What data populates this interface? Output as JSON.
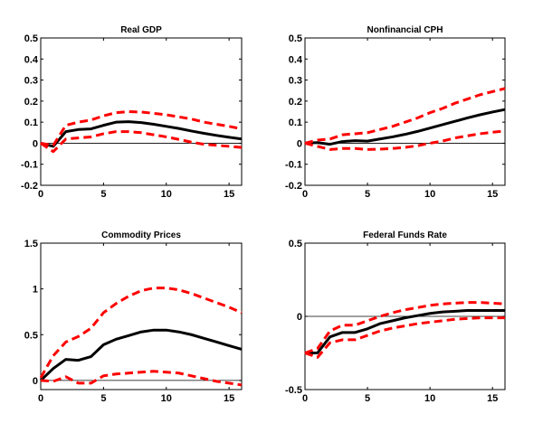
{
  "chart_data": [
    {
      "type": "line",
      "title": "Real GDP",
      "x": [
        0,
        1,
        2,
        3,
        4,
        5,
        6,
        7,
        8,
        9,
        10,
        11,
        12,
        13,
        14,
        15,
        16
      ],
      "xlim": [
        0,
        16
      ],
      "xticks": [
        0,
        5,
        10,
        15
      ],
      "ylim": [
        -0.2,
        0.5
      ],
      "yticks": [
        -0.2,
        -0.1,
        0,
        0.1,
        0.2,
        0.3,
        0.4,
        0.5
      ],
      "ytick_labels": [
        "-0.2",
        "-0.1",
        "0",
        "0.1",
        "0.2",
        "0.3",
        "0.4",
        "0.5"
      ],
      "zero_line": true,
      "grid": false,
      "series": [
        {
          "role": "estimate",
          "color": "#000000",
          "style": "solid",
          "values": [
            0,
            -0.015,
            0.055,
            0.065,
            0.068,
            0.085,
            0.1,
            0.102,
            0.098,
            0.09,
            0.08,
            0.07,
            0.058,
            0.047,
            0.037,
            0.028,
            0.02
          ]
        },
        {
          "role": "upper band",
          "color": "#ff0000",
          "style": "dashed",
          "values": [
            0,
            -0.01,
            0.085,
            0.1,
            0.11,
            0.13,
            0.145,
            0.15,
            0.148,
            0.142,
            0.135,
            0.125,
            0.115,
            0.1,
            0.09,
            0.08,
            0.068
          ]
        },
        {
          "role": "lower band",
          "color": "#ff0000",
          "style": "dashed",
          "values": [
            0,
            -0.04,
            0.02,
            0.025,
            0.03,
            0.045,
            0.055,
            0.055,
            0.05,
            0.04,
            0.03,
            0.018,
            0.005,
            -0.005,
            -0.01,
            -0.015,
            -0.02
          ]
        }
      ]
    },
    {
      "type": "line",
      "title": "Nonfinancial CPH",
      "x": [
        0,
        1,
        2,
        3,
        4,
        5,
        6,
        7,
        8,
        9,
        10,
        11,
        12,
        13,
        14,
        15,
        16
      ],
      "xlim": [
        0,
        16
      ],
      "xticks": [
        0,
        5,
        10,
        15
      ],
      "ylim": [
        -0.2,
        0.5
      ],
      "yticks": [
        -0.2,
        -0.1,
        0,
        0.1,
        0.2,
        0.3,
        0.4,
        0.5
      ],
      "ytick_labels": [
        "-0.2",
        "-0.1",
        "0",
        "0.1",
        "0.2",
        "0.3",
        "0.4",
        "0.5"
      ],
      "zero_line": true,
      "grid": false,
      "series": [
        {
          "role": "estimate",
          "color": "#000000",
          "style": "solid",
          "values": [
            0,
            0.003,
            -0.005,
            0.008,
            0.012,
            0.01,
            0.02,
            0.03,
            0.042,
            0.056,
            0.072,
            0.088,
            0.104,
            0.12,
            0.135,
            0.148,
            0.16
          ]
        },
        {
          "role": "upper band",
          "color": "#ff0000",
          "style": "dashed",
          "values": [
            0,
            0.015,
            0.02,
            0.04,
            0.045,
            0.05,
            0.065,
            0.08,
            0.1,
            0.12,
            0.145,
            0.165,
            0.19,
            0.21,
            0.23,
            0.245,
            0.26
          ]
        },
        {
          "role": "lower band",
          "color": "#ff0000",
          "style": "dashed",
          "values": [
            0,
            -0.015,
            -0.03,
            -0.025,
            -0.025,
            -0.03,
            -0.028,
            -0.025,
            -0.02,
            -0.012,
            0,
            0.01,
            0.025,
            0.035,
            0.045,
            0.052,
            0.058
          ]
        }
      ]
    },
    {
      "type": "line",
      "title": "Commodity Prices",
      "x": [
        0,
        1,
        2,
        3,
        4,
        5,
        6,
        7,
        8,
        9,
        10,
        11,
        12,
        13,
        14,
        15,
        16
      ],
      "xlim": [
        0,
        16
      ],
      "xticks": [
        0,
        5,
        10,
        15
      ],
      "ylim": [
        -0.1,
        1.5
      ],
      "yticks": [
        0,
        0.5,
        1,
        1.5
      ],
      "ytick_labels": [
        "0",
        "0.5",
        "1",
        "1.5"
      ],
      "zero_line": true,
      "grid": false,
      "series": [
        {
          "role": "estimate",
          "color": "#000000",
          "style": "solid",
          "values": [
            0,
            0.13,
            0.23,
            0.22,
            0.26,
            0.39,
            0.45,
            0.49,
            0.53,
            0.55,
            0.55,
            0.53,
            0.5,
            0.46,
            0.42,
            0.38,
            0.34
          ]
        },
        {
          "role": "upper band",
          "color": "#ff0000",
          "style": "dashed",
          "values": [
            0.03,
            0.27,
            0.42,
            0.48,
            0.57,
            0.74,
            0.84,
            0.92,
            0.98,
            1.01,
            1.01,
            0.99,
            0.95,
            0.9,
            0.85,
            0.8,
            0.74
          ]
        },
        {
          "role": "lower band",
          "color": "#ff0000",
          "style": "dashed",
          "values": [
            0,
            -0.01,
            0.04,
            -0.03,
            -0.03,
            0.05,
            0.07,
            0.08,
            0.09,
            0.1,
            0.09,
            0.08,
            0.05,
            0.02,
            -0.01,
            -0.03,
            -0.05
          ]
        }
      ]
    },
    {
      "type": "line",
      "title": "Federal Funds Rate",
      "x": [
        0,
        1,
        2,
        3,
        4,
        5,
        6,
        7,
        8,
        9,
        10,
        11,
        12,
        13,
        14,
        15,
        16
      ],
      "xlim": [
        0,
        16
      ],
      "xticks": [
        0,
        5,
        10,
        15
      ],
      "ylim": [
        -0.5,
        0.5
      ],
      "yticks": [
        -0.5,
        0,
        0.5
      ],
      "ytick_labels": [
        "-0.5",
        "0",
        "0.5"
      ],
      "zero_line": true,
      "grid": false,
      "series": [
        {
          "role": "estimate",
          "color": "#000000",
          "style": "solid",
          "values": [
            -0.25,
            -0.25,
            -0.14,
            -0.11,
            -0.11,
            -0.085,
            -0.05,
            -0.03,
            -0.01,
            0.005,
            0.02,
            0.03,
            0.035,
            0.04,
            0.04,
            0.04,
            0.04
          ]
        },
        {
          "role": "upper band",
          "color": "#ff0000",
          "style": "dashed",
          "values": [
            -0.25,
            -0.22,
            -0.1,
            -0.06,
            -0.06,
            -0.03,
            0,
            0.025,
            0.045,
            0.06,
            0.075,
            0.085,
            0.09,
            0.095,
            0.095,
            0.09,
            0.085
          ]
        },
        {
          "role": "lower band",
          "color": "#ff0000",
          "style": "dashed",
          "values": [
            -0.25,
            -0.28,
            -0.18,
            -0.16,
            -0.16,
            -0.13,
            -0.1,
            -0.08,
            -0.065,
            -0.05,
            -0.04,
            -0.03,
            -0.02,
            -0.015,
            -0.01,
            -0.01,
            -0.01
          ]
        }
      ]
    }
  ]
}
